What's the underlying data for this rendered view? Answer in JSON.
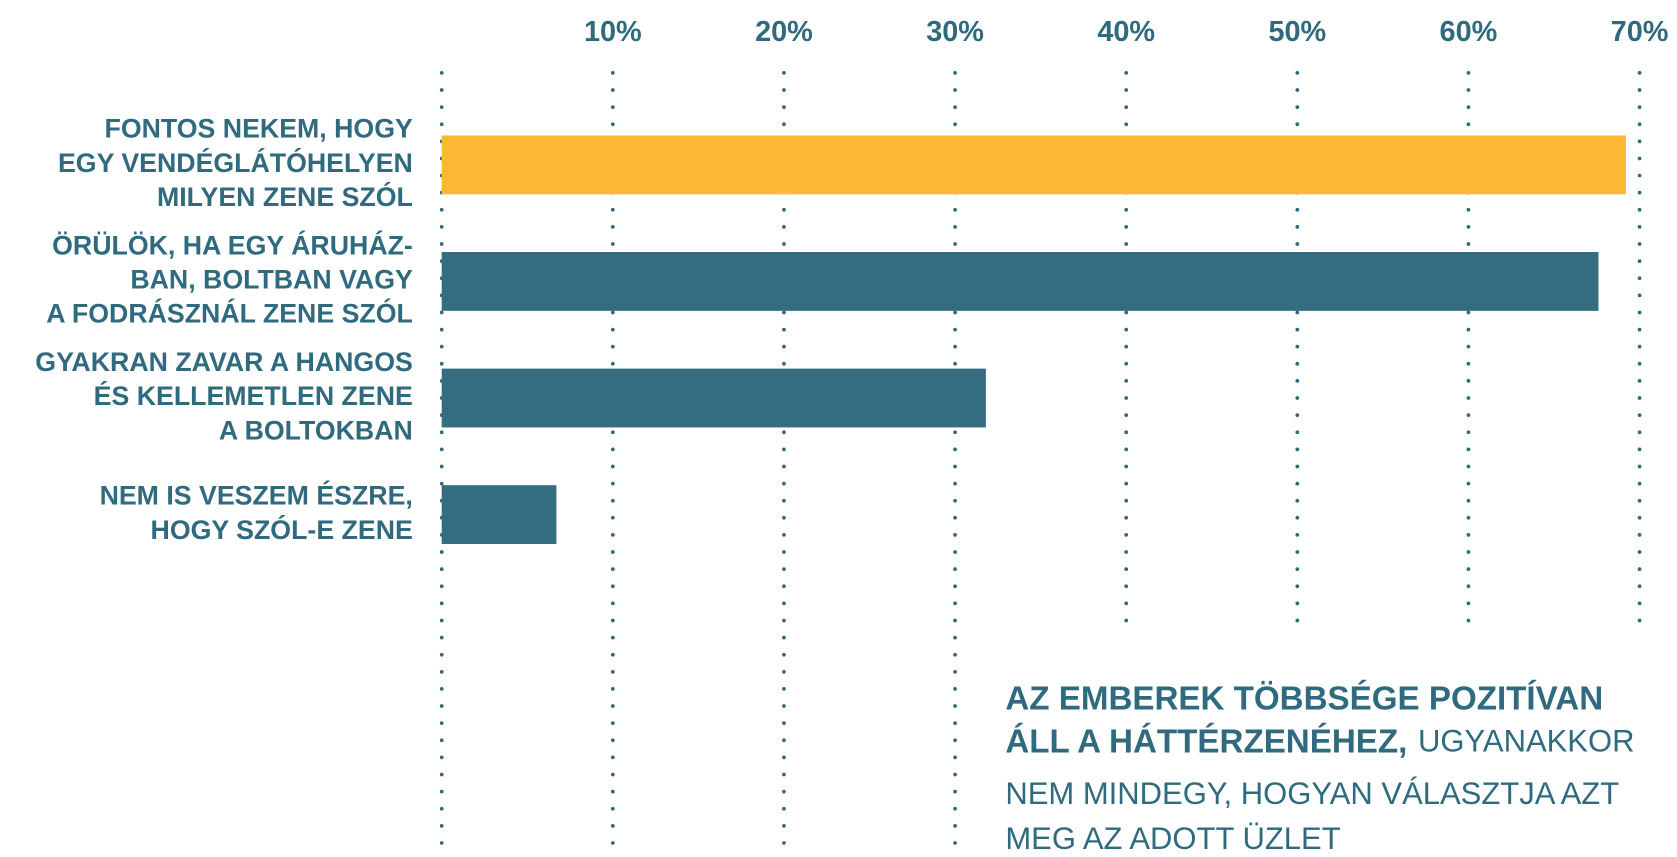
{
  "chart_data": {
    "type": "bar",
    "orientation": "horizontal",
    "categories": [
      [
        "FONTOS NEKEM, HOGY",
        "EGY VENDÉGLÁTÓHELYEN",
        "MILYEN ZENE SZÓL"
      ],
      [
        "ÖRÜLÖK, HA EGY ÁRUHÁZ-",
        "BAN, BOLTBAN VAGY",
        "A FODRÁSZNÁL ZENE SZÓL"
      ],
      [
        "GYAKRAN ZAVAR A HANGOS",
        "ÉS KELLEMETLEN ZENE",
        "A BOLTOKBAN"
      ],
      [
        "NEM IS VESZEM ÉSZRE,",
        "HOGY SZÓL-E ZENE"
      ]
    ],
    "values": [
      69.2,
      67.6,
      31.8,
      6.7
    ],
    "colors": [
      "#fbb832",
      "#356d80",
      "#356d80",
      "#356d80"
    ],
    "xlim": [
      0,
      70
    ],
    "xticks": [
      {
        "value": 10,
        "label": "10%"
      },
      {
        "value": 20,
        "label": "20%"
      },
      {
        "value": 30,
        "label": "30%"
      },
      {
        "value": 40,
        "label": "40%"
      },
      {
        "value": 50,
        "label": "50%"
      },
      {
        "value": 60,
        "label": "60%"
      },
      {
        "value": 70,
        "label": "70%"
      }
    ],
    "grid": true,
    "annotation": {
      "bold": [
        "AZ EMBEREK TÖBBSÉGE POZITÍVAN",
        "ÁLL A HÁTTÉRZENÉHEZ,"
      ],
      "regular": [
        "UGYANAKKOR",
        "NEM MINDEGY, HOGYAN VÁLASZTJA AZT",
        "MEG AZ ADOTT ÜZLET"
      ]
    }
  }
}
